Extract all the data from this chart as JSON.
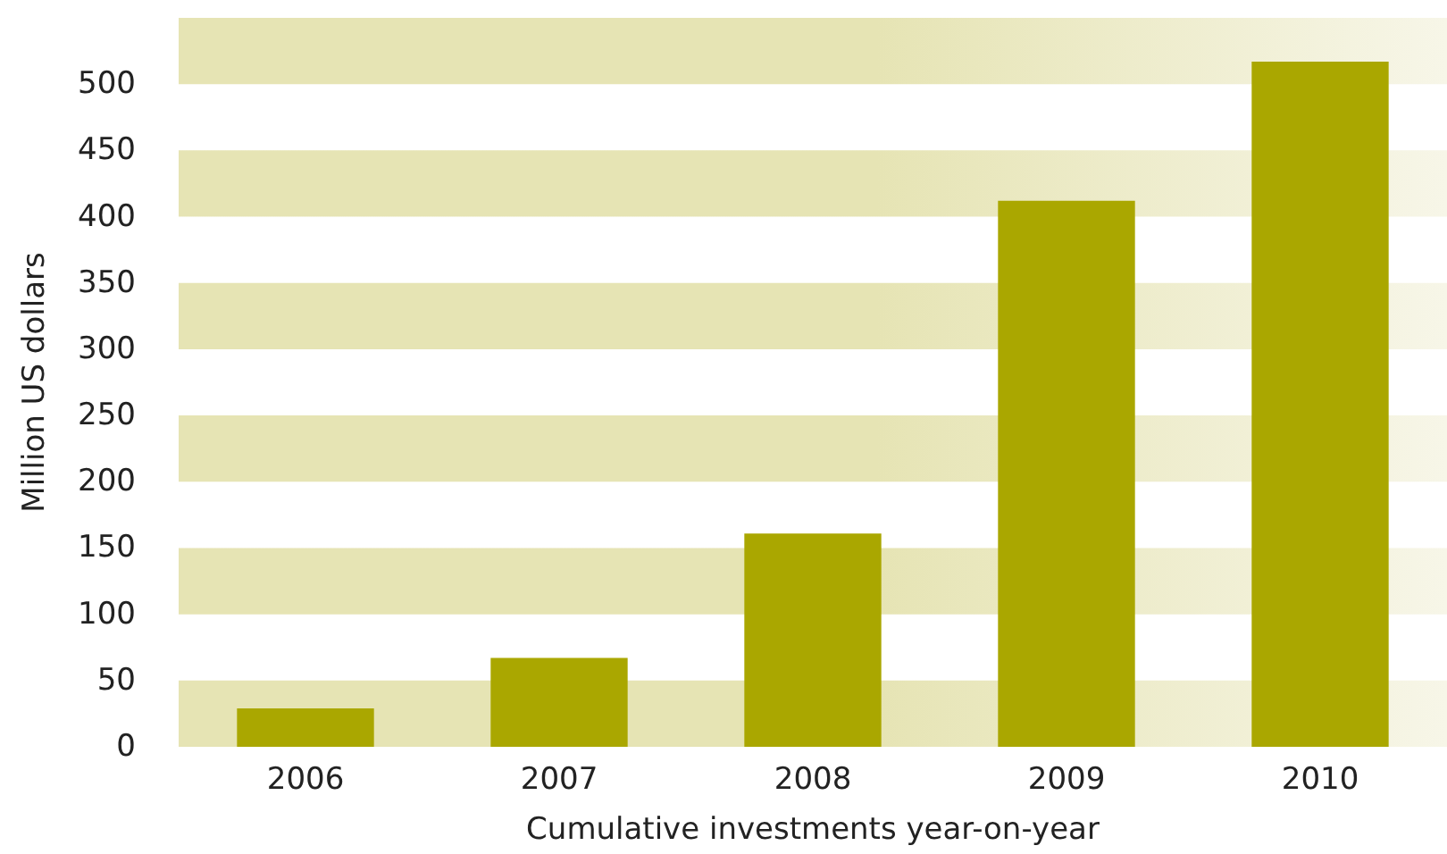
{
  "chart_data": {
    "type": "bar",
    "xlabel": "Cumulative investments year-on-year",
    "ylabel": "Million US dollars",
    "categories": [
      "2006",
      "2007",
      "2008",
      "2009",
      "2010"
    ],
    "values": [
      29,
      67,
      161,
      412,
      517
    ],
    "color": "#aaa700",
    "ylim": [
      0,
      550
    ],
    "yticks": [
      0,
      50,
      100,
      150,
      200,
      250,
      300,
      350,
      400,
      450,
      500
    ],
    "bands": [
      {
        "axis": "y",
        "from": 0,
        "to": 50,
        "color": "#e6e4b4"
      },
      {
        "axis": "y",
        "from": 100,
        "to": 150,
        "color": "#e6e4b4"
      },
      {
        "axis": "y",
        "from": 200,
        "to": 250,
        "color": "#e6e4b4"
      },
      {
        "axis": "y",
        "from": 300,
        "to": 350,
        "color": "#e6e4b4"
      },
      {
        "axis": "y",
        "from": 400,
        "to": 450,
        "color": "#e6e4b4"
      },
      {
        "axis": "y",
        "from": 500,
        "to": 550,
        "color": "#e6e4b4"
      }
    ],
    "grid": false
  }
}
